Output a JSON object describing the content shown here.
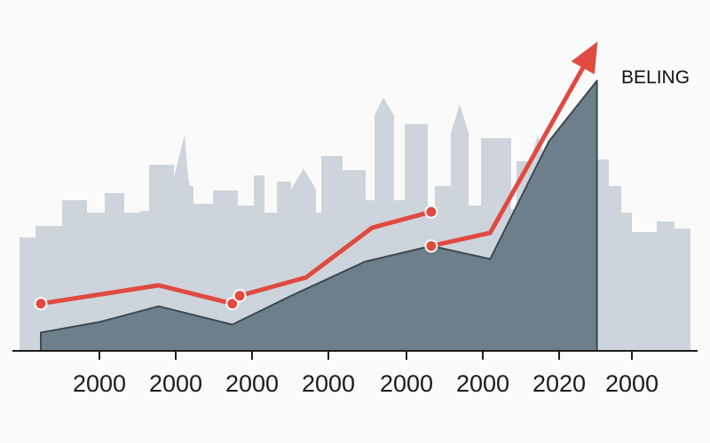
{
  "chart_data": {
    "type": "area",
    "x_tick_labels": [
      "2000",
      "2000",
      "2000",
      "2000",
      "2000",
      "2000",
      "2020",
      "2000"
    ],
    "ylim": [
      0,
      100
    ],
    "grid": false,
    "legend": "none",
    "annotation": "BELING",
    "series": [
      {
        "style": "area",
        "color": "#6e7f8c",
        "points": [
          [
            0.0,
            7
          ],
          [
            0.8,
            11
          ],
          [
            1.6,
            17
          ],
          [
            2.6,
            10
          ],
          [
            3.4,
            21
          ],
          [
            4.4,
            34
          ],
          [
            5.3,
            40
          ],
          [
            6.1,
            35
          ],
          [
            6.9,
            80
          ],
          [
            7.55,
            103
          ]
        ]
      },
      {
        "style": "line",
        "color": "#e04a40",
        "segments": [
          [
            [
              0.0,
              18
            ],
            [
              1.6,
              25
            ],
            [
              2.6,
              18
            ]
          ],
          [
            [
              2.7,
              21
            ],
            [
              3.6,
              28
            ],
            [
              4.5,
              47
            ],
            [
              5.3,
              53
            ]
          ],
          [
            [
              5.3,
              40
            ],
            [
              6.1,
              45
            ],
            [
              7.5,
              115
            ]
          ]
        ],
        "markers": [
          [
            0.0,
            18
          ],
          [
            2.6,
            18
          ],
          [
            2.7,
            21
          ],
          [
            5.3,
            53
          ],
          [
            5.3,
            40
          ]
        ]
      }
    ]
  },
  "colors": {
    "background": "#fafafa",
    "skyline": "#cdd4dc",
    "area_fill": "#6e7f8c",
    "area_edge": "#3c4852",
    "line": "#e04a40",
    "axis": "#1e1e1e"
  }
}
